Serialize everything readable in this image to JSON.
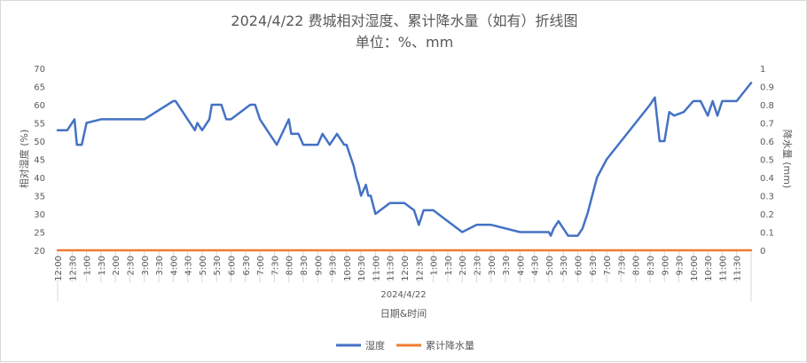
{
  "chart_data": {
    "type": "line",
    "title": "2024/4/22 费城相对湿度、累计降水量（如有）折线图",
    "subtitle": "单位：%、mm",
    "xlabel": "日期&时间",
    "x_group_label": "2024/4/22",
    "ylabel": "相对湿度 (%)",
    "y2label": "降水量 (mm)",
    "ylim": [
      20,
      70
    ],
    "y_ticks": [
      "20",
      "25",
      "30",
      "35",
      "40",
      "45",
      "50",
      "55",
      "60",
      "65",
      "70"
    ],
    "y2lim": [
      0,
      1
    ],
    "y2_ticks": [
      "0",
      "0.1",
      "0.2",
      "0.3",
      "0.4",
      "0.5",
      "0.6",
      "0.7",
      "0.8",
      "0.9",
      "1"
    ],
    "x_ticks": [
      "12:00",
      "12:30",
      "1:00",
      "1:30",
      "2:00",
      "2:30",
      "3:00",
      "3:30",
      "4:00",
      "4:30",
      "5:00",
      "5:30",
      "6:00",
      "6:30",
      "7:00",
      "7:30",
      "8:00",
      "8:30",
      "9:00",
      "9:30",
      "10:00",
      "10:30",
      "11:00",
      "11:30",
      "12:00",
      "12:30",
      "1:00",
      "1:30",
      "2:00",
      "2:30",
      "3:00",
      "3:30",
      "4:00",
      "4:30",
      "5:00",
      "5:30",
      "6:00",
      "6:30",
      "7:00",
      "7:30",
      "8:00",
      "8:30",
      "9:00",
      "9:30",
      "10:00",
      "10:30",
      "11:00",
      "11:30"
    ],
    "x_span_minutes": 1440,
    "grid": false,
    "legend_position": "bottom",
    "series": [
      {
        "name": "湿度",
        "color": "#4472c4",
        "axis": "left",
        "x_minutes": [
          0,
          20,
          35,
          40,
          45,
          50,
          60,
          90,
          120,
          180,
          240,
          245,
          270,
          285,
          290,
          300,
          315,
          320,
          330,
          340,
          350,
          360,
          400,
          410,
          420,
          440,
          455,
          480,
          485,
          500,
          510,
          540,
          550,
          565,
          580,
          595,
          600,
          605,
          610,
          615,
          620,
          625,
          630,
          640,
          645,
          650,
          660,
          690,
          720,
          740,
          750,
          760,
          780,
          800,
          840,
          870,
          900,
          960,
          990,
          1020,
          1024,
          1030,
          1040,
          1060,
          1080,
          1090,
          1095,
          1100,
          1110,
          1120,
          1140,
          1170,
          1200,
          1230,
          1240,
          1250,
          1260,
          1265,
          1270,
          1280,
          1300,
          1320,
          1335,
          1350,
          1360,
          1370,
          1380,
          1395,
          1410,
          1440
        ],
        "values": [
          53,
          53,
          56,
          49,
          49,
          49,
          55,
          56,
          56,
          56,
          61,
          61,
          56,
          53,
          55,
          53,
          56,
          60,
          60,
          60,
          56,
          56,
          60,
          60,
          56,
          52,
          49,
          56,
          52,
          52,
          49,
          49,
          52,
          49,
          52,
          49,
          49,
          47,
          45,
          43,
          40,
          38,
          35,
          38,
          35,
          35,
          30,
          33,
          33,
          31,
          27,
          31,
          31,
          29,
          25,
          27,
          27,
          25,
          25,
          25,
          24,
          26,
          28,
          24,
          24,
          26,
          28,
          30,
          35,
          40,
          45,
          50,
          55,
          60,
          62,
          50,
          50,
          54,
          58,
          57,
          58,
          61,
          61,
          57,
          61,
          57,
          61,
          61,
          61,
          66
        ]
      },
      {
        "name": "累计降水量",
        "color": "#ed7d31",
        "axis": "right",
        "x_minutes": [
          0,
          1440
        ],
        "values": [
          0,
          0
        ]
      }
    ]
  }
}
